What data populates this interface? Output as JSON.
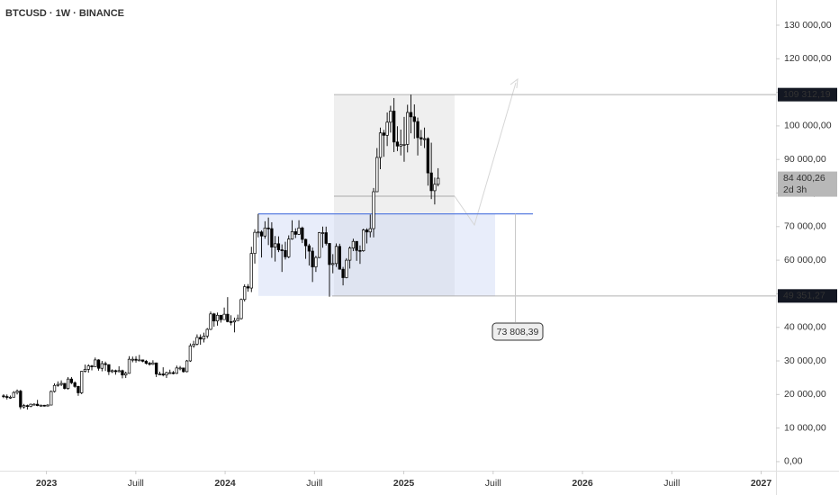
{
  "chart_data": {
    "type": "candlestick",
    "title": "BTCUSD · 1W · BINANCE",
    "up_color": "#ffffff",
    "down_color": "#000000",
    "outline_color": "#000000",
    "x": [
      2022.76,
      2022.779,
      2022.798,
      2022.817,
      2022.836,
      2022.855,
      2022.874,
      2022.893,
      2022.912,
      2022.931,
      2022.95,
      2022.969,
      2022.988,
      2023.007,
      2023.026,
      2023.045,
      2023.064,
      2023.083,
      2023.102,
      2023.121,
      2023.14,
      2023.159,
      2023.178,
      2023.197,
      2023.216,
      2023.235,
      2023.254,
      2023.273,
      2023.292,
      2023.311,
      2023.33,
      2023.349,
      2023.368,
      2023.387,
      2023.406,
      2023.425,
      2023.444,
      2023.463,
      2023.482,
      2023.501,
      2023.52,
      2023.539,
      2023.558,
      2023.577,
      2023.596,
      2023.615,
      2023.634,
      2023.653,
      2023.672,
      2023.691,
      2023.71,
      2023.729,
      2023.748,
      2023.767,
      2023.786,
      2023.805,
      2023.824,
      2023.843,
      2023.862,
      2023.881,
      2023.9,
      2023.919,
      2023.938,
      2023.957,
      2023.976,
      2023.995,
      2024.014,
      2024.033,
      2024.052,
      2024.071,
      2024.09,
      2024.109,
      2024.128,
      2024.147,
      2024.166,
      2024.185,
      2024.204,
      2024.223,
      2024.242,
      2024.261,
      2024.28,
      2024.299,
      2024.318,
      2024.337,
      2024.356,
      2024.375,
      2024.394,
      2024.413,
      2024.432,
      2024.451,
      2024.47,
      2024.489,
      2024.508,
      2024.527,
      2024.546,
      2024.565,
      2024.584,
      2024.603,
      2024.622,
      2024.641,
      2024.66,
      2024.679,
      2024.698,
      2024.717,
      2024.736,
      2024.755,
      2024.774,
      2024.793,
      2024.812,
      2024.831,
      2024.85,
      2024.869,
      2024.888,
      2024.907,
      2024.926,
      2024.945,
      2024.964,
      2024.983,
      2025.002,
      2025.021,
      2025.04,
      2025.059,
      2025.078,
      2025.097,
      2025.116,
      2025.135,
      2025.154,
      2025.173,
      2025.192
    ],
    "open": [
      19600,
      19400,
      19200,
      19200,
      20600,
      21000,
      16300,
      16700,
      16450,
      17100,
      17100,
      16700,
      16800,
      16550,
      16850,
      20900,
      22700,
      23000,
      23300,
      21800,
      24600,
      23500,
      22400,
      20500,
      26900,
      27500,
      28500,
      28300,
      30300,
      27800,
      29200,
      28900,
      26800,
      27100,
      26800,
      27100,
      25800,
      26300,
      30500,
      30500,
      30200,
      30300,
      29900,
      29300,
      29000,
      29400,
      26100,
      26100,
      25800,
      26500,
      26500,
      26300,
      27900,
      27900,
      26800,
      30000,
      34500,
      35000,
      37000,
      36500,
      37400,
      39400,
      44000,
      41900,
      43600,
      42300,
      43900,
      41700,
      41600,
      42000,
      42600,
      48300,
      52100,
      51700,
      62000,
      68300,
      68400,
      67200,
      69600,
      69400,
      63900,
      64900,
      63100,
      62900,
      61000,
      66300,
      68500,
      67700,
      69600,
      66200,
      64300,
      62700,
      58000,
      60800,
      68200,
      68200,
      65000,
      58700,
      59000,
      64100,
      57300,
      54800,
      60000,
      63600,
      65600,
      62900,
      62800,
      69000,
      68400,
      69400,
      80400,
      90600,
      97900,
      97200,
      101100,
      104400,
      95200,
      94000,
      94400,
      94500,
      104000,
      102700,
      101300,
      96500,
      96100,
      96200,
      86000,
      80700,
      82600
    ],
    "high": [
      20100,
      20000,
      19700,
      21000,
      21500,
      21400,
      17200,
      17000,
      17300,
      17400,
      18400,
      17000,
      16900,
      17100,
      21200,
      23300,
      23900,
      24200,
      23400,
      25200,
      25200,
      23900,
      22600,
      27000,
      28900,
      29000,
      28800,
      31000,
      30500,
      30000,
      29800,
      28900,
      27500,
      27400,
      28400,
      27400,
      26800,
      31400,
      31300,
      31400,
      31800,
      30400,
      30300,
      29700,
      30200,
      29500,
      26800,
      28100,
      26800,
      27400,
      27000,
      28600,
      28500,
      28000,
      30300,
      35200,
      36000,
      37900,
      37900,
      38400,
      39800,
      44700,
      44300,
      44400,
      43700,
      45900,
      49000,
      43600,
      42900,
      43800,
      48600,
      52800,
      52900,
      64000,
      69200,
      73800,
      68900,
      71600,
      72700,
      71300,
      67200,
      67100,
      64700,
      65500,
      67400,
      71900,
      69500,
      71900,
      70000,
      66400,
      64900,
      63800,
      61300,
      68400,
      70000,
      70000,
      65100,
      61800,
      65000,
      64900,
      58000,
      60600,
      64100,
      66400,
      65600,
      64400,
      69400,
      69500,
      73600,
      81500,
      93400,
      99500,
      98800,
      104000,
      106000,
      108300,
      99900,
      98900,
      102700,
      106300,
      109312,
      106400,
      102500,
      98800,
      99500,
      96600,
      95000,
      84600,
      87400
    ],
    "low": [
      18900,
      18500,
      18700,
      19100,
      20000,
      15600,
      15800,
      15500,
      16200,
      16900,
      16500,
      16400,
      16400,
      16500,
      16800,
      20600,
      22300,
      22500,
      21500,
      21400,
      23100,
      22000,
      19600,
      20100,
      26600,
      26500,
      27200,
      28200,
      27100,
      26900,
      27000,
      25800,
      26400,
      25900,
      26600,
      24800,
      24900,
      26200,
      29600,
      29500,
      29900,
      29600,
      28900,
      28600,
      28800,
      25200,
      25800,
      25400,
      24900,
      26200,
      26000,
      26100,
      27200,
      26500,
      26600,
      29700,
      33900,
      34600,
      34800,
      35500,
      36700,
      39200,
      40200,
      40500,
      41400,
      42200,
      41500,
      40600,
      38500,
      41900,
      42300,
      47700,
      50600,
      50500,
      59000,
      66800,
      60800,
      66400,
      64500,
      60700,
      59600,
      62400,
      56500,
      60200,
      60600,
      66100,
      66600,
      67500,
      65100,
      60400,
      58400,
      53500,
      56500,
      60600,
      63700,
      64400,
      49100,
      56100,
      58000,
      57200,
      52500,
      54600,
      57500,
      62700,
      59800,
      58900,
      62500,
      65000,
      66800,
      66800,
      80300,
      87100,
      90800,
      94000,
      98000,
      92200,
      92500,
      91200,
      89300,
      92100,
      97800,
      96200,
      91200,
      94100,
      93400,
      82200,
      78200,
      76600,
      82000
    ],
    "close": [
      19400,
      19200,
      19200,
      20600,
      21000,
      16300,
      16700,
      16450,
      17100,
      17100,
      16700,
      16800,
      16550,
      16850,
      20900,
      22700,
      23000,
      23300,
      21800,
      24600,
      23500,
      22400,
      20500,
      26900,
      27500,
      28500,
      28300,
      30300,
      27800,
      29200,
      28900,
      26800,
      27100,
      26800,
      27100,
      25800,
      26300,
      30500,
      30500,
      30200,
      30300,
      29900,
      29300,
      29000,
      29400,
      26100,
      26100,
      25800,
      26500,
      26500,
      26300,
      27900,
      27900,
      26800,
      30000,
      34500,
      35000,
      37000,
      36500,
      37400,
      39400,
      44000,
      41900,
      43600,
      42300,
      43900,
      41700,
      41600,
      42000,
      42600,
      48300,
      52100,
      51700,
      62000,
      68300,
      68400,
      67200,
      69600,
      69400,
      63900,
      64900,
      63100,
      62900,
      61000,
      66300,
      68500,
      67700,
      69600,
      66200,
      64300,
      62700,
      58000,
      60800,
      68200,
      68200,
      65000,
      58700,
      59000,
      64100,
      57300,
      54800,
      60000,
      63600,
      65600,
      62900,
      62800,
      69000,
      68400,
      69400,
      80400,
      90600,
      97900,
      97200,
      101100,
      104400,
      95200,
      94000,
      94400,
      94500,
      104000,
      102700,
      101300,
      96500,
      96100,
      96200,
      86000,
      80700,
      82600,
      84400
    ],
    "xlim": [
      2022.74,
      2027.083
    ],
    "xticks": [
      2023,
      {
        "value": 2023.5,
        "label": "Juill"
      },
      2024,
      {
        "value": 2024.5,
        "label": "Juill"
      },
      2025,
      {
        "value": 2025.5,
        "label": "Juill"
      },
      2026,
      {
        "value": 2026.5,
        "label": "Juill"
      },
      2027
    ],
    "ylim": [
      -2700,
      137500
    ],
    "yticks": [
      {
        "value": 0,
        "label": "0,00"
      },
      {
        "value": 10000,
        "label": "10 000,00"
      },
      {
        "value": 20000,
        "label": "20 000,00"
      },
      {
        "value": 30000,
        "label": "30 000,00"
      },
      {
        "value": 40000,
        "label": "40 000,00"
      },
      {
        "value": 50000,
        "label": "50 000,00"
      },
      {
        "value": 60000,
        "label": "60 000,00"
      },
      {
        "value": 70000,
        "label": "70 000,00"
      },
      {
        "value": 80000,
        "label": "80 000,00"
      },
      {
        "value": 90000,
        "label": "90 000,00"
      },
      {
        "value": 100000,
        "label": "100 000,00"
      },
      {
        "value": 110000,
        "label": "110 000,00"
      },
      {
        "value": 120000,
        "label": "120 000,00"
      },
      {
        "value": 130000,
        "label": "130 000,00"
      }
    ],
    "levels": [
      {
        "value": 109312.19,
        "label": "109 312,19"
      },
      {
        "value": 49351.27,
        "label": "49 351,27"
      }
    ],
    "last_price": {
      "value": 84400.26,
      "label": "84 400,26"
    },
    "countdown": "2d 3h",
    "measure": {
      "value": 73808.39,
      "label": "73 808,39"
    }
  }
}
